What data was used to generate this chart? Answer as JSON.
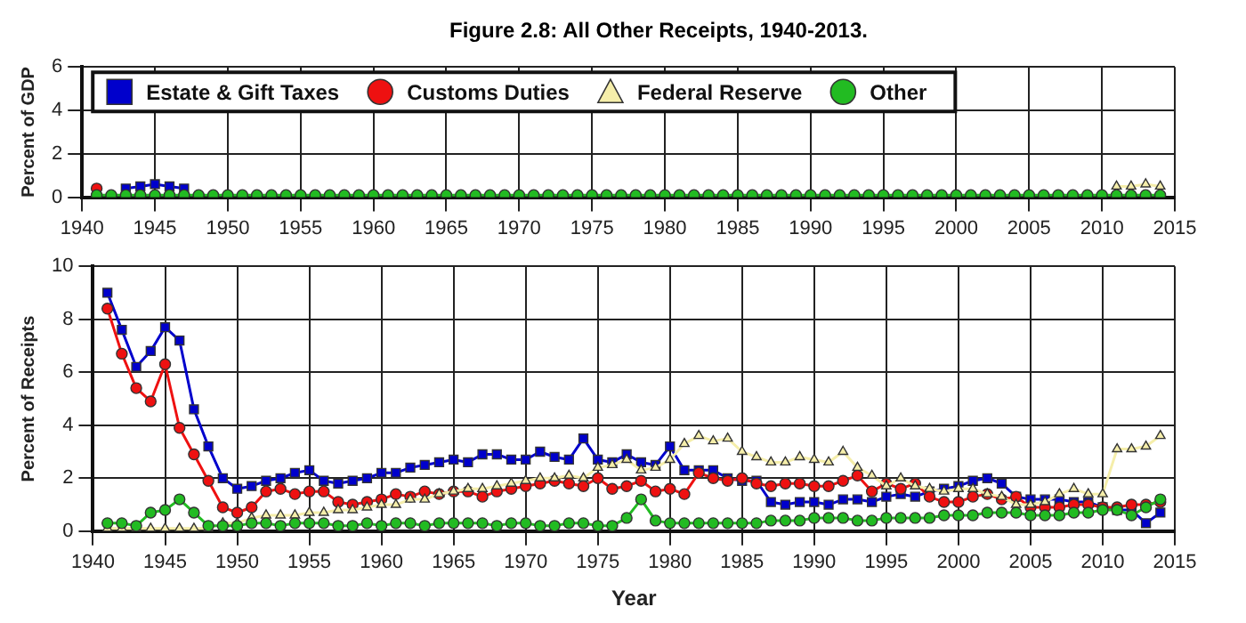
{
  "chart_data": [
    {
      "type": "line",
      "title": "Figure 2.8: All Other Receipts, 1940-2013.",
      "ylabel": "Percent of GDP",
      "legend": "top left",
      "grid": true,
      "x": [
        1941,
        1942,
        1943,
        1944,
        1945,
        1946,
        1947,
        1948,
        1949,
        1950,
        1951,
        1952,
        1953,
        1954,
        1955,
        1956,
        1957,
        1958,
        1959,
        1960,
        1961,
        1962,
        1963,
        1964,
        1965,
        1966,
        1967,
        1968,
        1969,
        1970,
        1971,
        1972,
        1973,
        1974,
        1975,
        1976,
        1977,
        1978,
        1979,
        1980,
        1981,
        1982,
        1983,
        1984,
        1985,
        1986,
        1987,
        1988,
        1989,
        1990,
        1991,
        1992,
        1993,
        1994,
        1995,
        1996,
        1997,
        1998,
        1999,
        2000,
        2001,
        2002,
        2003,
        2004,
        2005,
        2006,
        2007,
        2008,
        2009,
        2010,
        2011,
        2012,
        2013,
        2014
      ],
      "xlim": [
        1940,
        2015
      ],
      "xticks": [
        1940,
        1945,
        1950,
        1955,
        1960,
        1965,
        1970,
        1975,
        1980,
        1985,
        1990,
        1995,
        2000,
        2005,
        2010,
        2015
      ],
      "ylim": [
        0,
        6
      ],
      "yticks": [
        0,
        2,
        4,
        6
      ],
      "series": [
        {
          "name": "Estate & Gift Taxes",
          "color": "#0000cc",
          "marker": "square",
          "values": [
            null,
            null,
            0.4,
            0.5,
            0.6,
            0.5,
            0.4,
            null,
            null,
            null,
            null,
            null,
            null,
            null,
            null,
            null,
            null,
            null,
            null,
            null,
            null,
            null,
            null,
            null,
            null,
            null,
            null,
            null,
            null,
            null,
            null,
            null,
            null,
            null,
            null,
            null,
            null,
            null,
            null,
            null,
            null,
            null,
            null,
            null,
            null,
            null,
            null,
            null,
            null,
            null,
            null,
            null,
            null,
            null,
            null,
            null,
            null,
            null,
            null,
            null,
            null,
            null,
            null,
            null,
            null,
            null,
            null,
            null,
            null,
            null,
            null,
            null,
            null,
            null
          ]
        },
        {
          "name": "Customs Duties",
          "color": "#ee1111",
          "marker": "circle",
          "values": [
            0.4,
            null,
            null,
            null,
            null,
            null,
            null,
            null,
            null,
            null,
            null,
            null,
            null,
            null,
            null,
            null,
            null,
            null,
            null,
            null,
            null,
            null,
            null,
            null,
            null,
            null,
            null,
            null,
            null,
            null,
            null,
            null,
            null,
            null,
            null,
            null,
            null,
            null,
            null,
            null,
            null,
            null,
            null,
            null,
            null,
            null,
            null,
            null,
            null,
            null,
            null,
            null,
            null,
            null,
            null,
            null,
            null,
            null,
            null,
            null,
            null,
            null,
            null,
            null,
            null,
            null,
            null,
            null,
            null,
            null,
            null,
            null,
            null,
            null
          ]
        },
        {
          "name": "Federal Reserve",
          "color": "#f5eeaa",
          "marker": "triangle",
          "values": [
            null,
            null,
            null,
            null,
            null,
            null,
            null,
            null,
            null,
            null,
            null,
            null,
            null,
            null,
            null,
            null,
            null,
            null,
            null,
            null,
            null,
            null,
            null,
            null,
            null,
            null,
            null,
            null,
            null,
            null,
            null,
            null,
            null,
            null,
            null,
            null,
            null,
            null,
            null,
            null,
            null,
            null,
            null,
            null,
            null,
            null,
            null,
            null,
            null,
            null,
            null,
            null,
            null,
            null,
            null,
            null,
            null,
            null,
            null,
            null,
            null,
            null,
            null,
            null,
            null,
            null,
            null,
            null,
            null,
            null,
            0.5,
            0.5,
            0.6,
            0.5
          ]
        },
        {
          "name": "Other",
          "color": "#22bb22",
          "marker": "circle",
          "values": [
            0.1,
            0.1,
            0.1,
            0.1,
            0.1,
            0.1,
            0.1,
            0.1,
            0.1,
            0.1,
            0.1,
            0.1,
            0.1,
            0.1,
            0.1,
            0.1,
            0.1,
            0.1,
            0.1,
            0.1,
            0.1,
            0.1,
            0.1,
            0.1,
            0.1,
            0.1,
            0.1,
            0.1,
            0.1,
            0.1,
            0.1,
            0.1,
            0.1,
            0.1,
            0.1,
            0.1,
            0.1,
            0.1,
            0.1,
            0.1,
            0.1,
            0.1,
            0.1,
            0.1,
            0.1,
            0.1,
            0.1,
            0.1,
            0.1,
            0.1,
            0.1,
            0.1,
            0.1,
            0.1,
            0.1,
            0.1,
            0.1,
            0.1,
            0.1,
            0.1,
            0.1,
            0.1,
            0.1,
            0.1,
            0.1,
            0.1,
            0.1,
            0.1,
            0.1,
            0.1,
            0.1,
            0.1,
            0.1,
            0.1
          ]
        }
      ]
    },
    {
      "type": "line",
      "xlabel": "Year",
      "ylabel": "Percent of Receipts",
      "grid": true,
      "x": [
        1941,
        1942,
        1943,
        1944,
        1945,
        1946,
        1947,
        1948,
        1949,
        1950,
        1951,
        1952,
        1953,
        1954,
        1955,
        1956,
        1957,
        1958,
        1959,
        1960,
        1961,
        1962,
        1963,
        1964,
        1965,
        1966,
        1967,
        1968,
        1969,
        1970,
        1971,
        1972,
        1973,
        1974,
        1975,
        1976,
        1977,
        1978,
        1979,
        1980,
        1981,
        1982,
        1983,
        1984,
        1985,
        1986,
        1987,
        1988,
        1989,
        1990,
        1991,
        1992,
        1993,
        1994,
        1995,
        1996,
        1997,
        1998,
        1999,
        2000,
        2001,
        2002,
        2003,
        2004,
        2005,
        2006,
        2007,
        2008,
        2009,
        2010,
        2011,
        2012,
        2013,
        2014
      ],
      "xlim": [
        1940,
        2015
      ],
      "xticks": [
        1940,
        1945,
        1950,
        1955,
        1960,
        1965,
        1970,
        1975,
        1980,
        1985,
        1990,
        1995,
        2000,
        2005,
        2010,
        2015
      ],
      "ylim": [
        0,
        10
      ],
      "yticks": [
        0,
        2,
        4,
        6,
        8,
        10
      ],
      "series": [
        {
          "color": "#0000cc",
          "marker": "square",
          "values": [
            9.0,
            7.6,
            6.2,
            6.8,
            7.7,
            7.2,
            4.6,
            3.2,
            2.0,
            1.6,
            1.7,
            1.9,
            2.0,
            2.2,
            2.3,
            1.9,
            1.8,
            1.9,
            2.0,
            2.2,
            2.2,
            2.4,
            2.5,
            2.6,
            2.7,
            2.6,
            2.9,
            2.9,
            2.7,
            2.7,
            3.0,
            2.8,
            2.7,
            3.5,
            2.7,
            2.6,
            2.9,
            2.6,
            2.5,
            3.2,
            2.3,
            2.3,
            2.3,
            2.0,
            1.9,
            1.9,
            1.1,
            1.0,
            1.1,
            1.1,
            1.0,
            1.2,
            1.2,
            1.1,
            1.3,
            1.4,
            1.3,
            1.5,
            1.6,
            1.7,
            1.9,
            2.0,
            1.8,
            1.3,
            1.2,
            1.2,
            1.2,
            1.1,
            1.1,
            0.9,
            0.8,
            0.8,
            0.3,
            0.7
          ]
        },
        {
          "color": "#ee1111",
          "marker": "circle",
          "values": [
            8.4,
            6.7,
            5.4,
            4.9,
            6.3,
            3.9,
            2.9,
            1.9,
            0.9,
            0.7,
            0.9,
            1.5,
            1.6,
            1.4,
            1.5,
            1.5,
            1.1,
            1.0,
            1.1,
            1.2,
            1.4,
            1.3,
            1.5,
            1.4,
            1.5,
            1.5,
            1.3,
            1.5,
            1.6,
            1.7,
            1.8,
            1.9,
            1.8,
            1.7,
            2.0,
            1.6,
            1.7,
            1.9,
            1.5,
            1.6,
            1.4,
            2.2,
            2.0,
            1.9,
            2.0,
            1.8,
            1.7,
            1.8,
            1.8,
            1.7,
            1.7,
            1.9,
            2.1,
            1.5,
            1.8,
            1.6,
            1.8,
            1.3,
            1.1,
            1.1,
            1.3,
            1.4,
            1.2,
            1.3,
            0.9,
            0.9,
            0.9,
            1.0,
            1.0,
            0.9,
            0.9,
            1.0,
            1.0,
            1.1
          ]
        },
        {
          "color": "#f5eeaa",
          "marker": "triangle",
          "values": [
            0.1,
            0.1,
            0.1,
            0.1,
            0.1,
            0.1,
            0.1,
            0.1,
            0.3,
            0.3,
            0.5,
            0.6,
            0.6,
            0.6,
            0.7,
            0.7,
            0.8,
            0.8,
            0.9,
            1.0,
            1.0,
            1.2,
            1.2,
            1.4,
            1.5,
            1.6,
            1.6,
            1.7,
            1.8,
            1.9,
            2.0,
            2.0,
            2.1,
            2.0,
            2.4,
            2.5,
            2.7,
            2.3,
            2.4,
            2.7,
            3.3,
            3.6,
            3.4,
            3.5,
            3.0,
            2.8,
            2.6,
            2.6,
            2.8,
            2.7,
            2.6,
            3.0,
            2.4,
            2.1,
            1.7,
            2.0,
            1.7,
            1.6,
            1.5,
            1.6,
            1.6,
            1.4,
            1.3,
            1.0,
            1.0,
            1.1,
            1.4,
            1.6,
            1.4,
            1.4,
            3.1,
            3.1,
            3.2,
            3.6
          ]
        },
        {
          "color": "#22bb22",
          "marker": "circle",
          "values": [
            0.3,
            0.3,
            0.2,
            0.7,
            0.8,
            1.2,
            0.7,
            0.2,
            0.2,
            0.2,
            0.3,
            0.3,
            0.2,
            0.3,
            0.3,
            0.3,
            0.2,
            0.2,
            0.3,
            0.2,
            0.3,
            0.3,
            0.2,
            0.3,
            0.3,
            0.3,
            0.3,
            0.2,
            0.3,
            0.3,
            0.2,
            0.2,
            0.3,
            0.3,
            0.2,
            0.2,
            0.5,
            1.2,
            0.4,
            0.3,
            0.3,
            0.3,
            0.3,
            0.3,
            0.3,
            0.3,
            0.4,
            0.4,
            0.4,
            0.5,
            0.5,
            0.5,
            0.4,
            0.4,
            0.5,
            0.5,
            0.5,
            0.5,
            0.6,
            0.6,
            0.6,
            0.7,
            0.7,
            0.7,
            0.6,
            0.6,
            0.6,
            0.7,
            0.7,
            0.8,
            0.8,
            0.6,
            0.9,
            1.2
          ]
        }
      ]
    }
  ]
}
